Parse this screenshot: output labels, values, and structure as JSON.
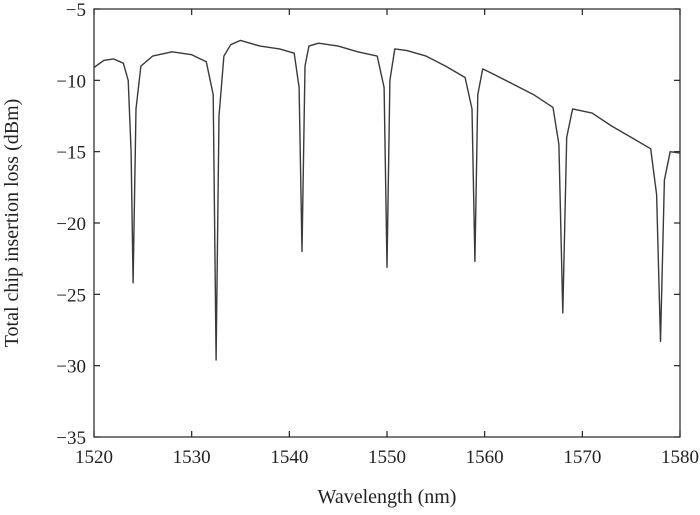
{
  "chart_data": {
    "type": "line",
    "title": "",
    "xlabel": "Wavelength (nm)",
    "ylabel": "Total chip insertion loss (dBm)",
    "xlim": [
      1520,
      1580
    ],
    "ylim": [
      -35,
      -5
    ],
    "xticks": [
      1520,
      1530,
      1540,
      1550,
      1560,
      1570,
      1580
    ],
    "yticks": [
      -35,
      -30,
      -25,
      -20,
      -15,
      -10,
      -5
    ],
    "xtick_labels": [
      "1520",
      "1530",
      "1540",
      "1550",
      "1560",
      "1570",
      "1580"
    ],
    "ytick_labels": [
      "−35",
      "−30",
      "−25",
      "−20",
      "−15",
      "−10",
      "−5"
    ],
    "grid": false,
    "line_color": "#3a3a3a",
    "series": [
      {
        "x": [
          1520,
          1521,
          1522,
          1523,
          1523.5,
          1523.8,
          1524.0,
          1524.3,
          1524.8,
          1526,
          1528,
          1530,
          1531.5,
          1532.2,
          1532.5,
          1532.8,
          1533.3,
          1534,
          1535,
          1537,
          1539,
          1540.5,
          1541.0,
          1541.3,
          1541.6,
          1542,
          1543,
          1545,
          1547,
          1549,
          1549.7,
          1550.0,
          1550.3,
          1550.8,
          1552,
          1554,
          1556,
          1558,
          1558.7,
          1559.0,
          1559.3,
          1559.8,
          1561,
          1563,
          1565,
          1567,
          1567.6,
          1568.0,
          1568.4,
          1569,
          1571,
          1573,
          1575,
          1577,
          1577.6,
          1578.0,
          1578.4,
          1579,
          1580
        ],
        "y": [
          -9.1,
          -8.6,
          -8.5,
          -8.8,
          -10.0,
          -15.0,
          -24.2,
          -12.0,
          -9.0,
          -8.3,
          -8.0,
          -8.2,
          -8.7,
          -11.0,
          -29.6,
          -12.5,
          -8.3,
          -7.5,
          -7.2,
          -7.6,
          -7.8,
          -8.1,
          -10.5,
          -22.0,
          -9.0,
          -7.6,
          -7.4,
          -7.6,
          -8.0,
          -8.3,
          -10.5,
          -23.1,
          -10.0,
          -7.8,
          -7.9,
          -8.3,
          -9.0,
          -9.8,
          -12.0,
          -22.7,
          -11.0,
          -9.2,
          -9.6,
          -10.3,
          -11.0,
          -11.9,
          -14.5,
          -26.3,
          -14.0,
          -12.0,
          -12.3,
          -13.2,
          -14.0,
          -14.8,
          -18.0,
          -28.3,
          -17.0,
          -15.0,
          -15.1
        ]
      }
    ]
  }
}
